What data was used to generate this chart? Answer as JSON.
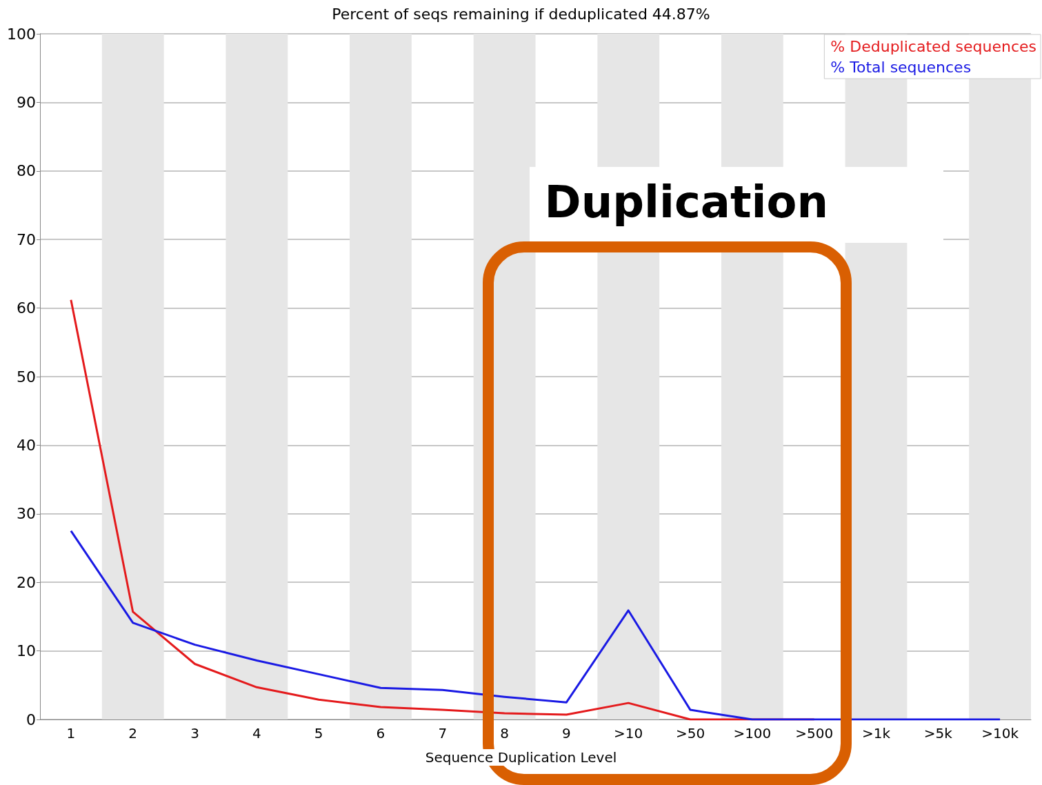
{
  "chart_data": {
    "type": "line",
    "title": "Percent of seqs remaining if deduplicated 44.87%",
    "xlabel": "Sequence Duplication Level",
    "categories": [
      "1",
      "2",
      "3",
      "4",
      "5",
      "6",
      "7",
      "8",
      "9",
      ">10",
      ">50",
      ">100",
      ">500",
      ">1k",
      ">5k",
      ">10k"
    ],
    "series": [
      {
        "name": "% Deduplicated sequences",
        "color": "#e41a1c",
        "values": [
          61.2,
          15.7,
          8.1,
          4.7,
          2.9,
          1.8,
          1.4,
          0.9,
          0.7,
          2.4,
          0,
          0,
          0,
          null,
          null,
          null
        ]
      },
      {
        "name": "% Total sequences",
        "color": "#1a1ae4",
        "values": [
          27.5,
          14.1,
          10.9,
          8.6,
          6.6,
          4.6,
          4.3,
          3.3,
          2.5,
          15.9,
          1.4,
          0,
          0,
          0,
          0,
          0
        ]
      }
    ],
    "ylim": [
      0,
      100
    ],
    "yticks": [
      0,
      10,
      20,
      30,
      40,
      50,
      60,
      70,
      80,
      90,
      100
    ],
    "grid": "y",
    "legend": "top right",
    "marker": "none",
    "line_style": "solid",
    "annotations": [
      "Duplication"
    ]
  }
}
